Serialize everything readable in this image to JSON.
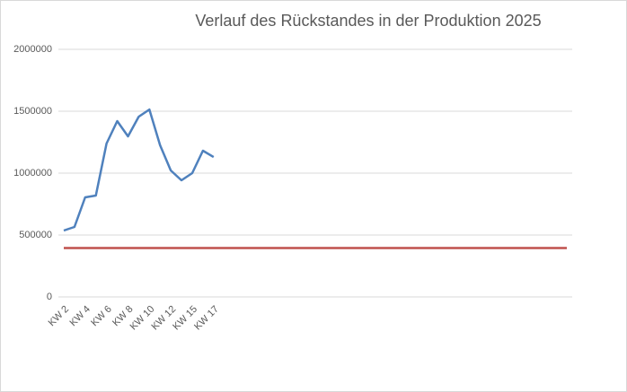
{
  "chart_data": {
    "type": "line",
    "title": "Verlauf des Rückstandes in der Produktion 2025",
    "categories": [
      "KW 2",
      null,
      "KW 4",
      null,
      "KW 6",
      null,
      "KW 8",
      null,
      "KW 10",
      null,
      "KW 12",
      null,
      "KW 15",
      null,
      "KW 17",
      null,
      null,
      null,
      null,
      null,
      null,
      null,
      null,
      null,
      null,
      null,
      null,
      null,
      null,
      null,
      null,
      null,
      null,
      null,
      null,
      null,
      null,
      null,
      null,
      null,
      null,
      null,
      null,
      null,
      null,
      null,
      null,
      null
    ],
    "series": [
      {
        "color": "#4f81bd",
        "values": [
          536000,
          565000,
          804000,
          819000,
          1239000,
          1420000,
          1297000,
          1456000,
          1514000,
          1225000,
          1022000,
          942000,
          1000000,
          1181000,
          1130000,
          null,
          null,
          null,
          null,
          null,
          null,
          null,
          null,
          null,
          null,
          null,
          null,
          null,
          null,
          null,
          null,
          null,
          null,
          null,
          null,
          null,
          null,
          null,
          null,
          null,
          null,
          null,
          null,
          null,
          null,
          null,
          null,
          null
        ]
      },
      {
        "color": "#c0504d",
        "values": [
          395000,
          395000,
          395000,
          395000,
          395000,
          395000,
          395000,
          395000,
          395000,
          395000,
          395000,
          395000,
          395000,
          395000,
          395000,
          395000,
          395000,
          395000,
          395000,
          395000,
          395000,
          395000,
          395000,
          395000,
          395000,
          395000,
          395000,
          395000,
          395000,
          395000,
          395000,
          395000,
          395000,
          395000,
          395000,
          395000,
          395000,
          395000,
          395000,
          395000,
          395000,
          395000,
          395000,
          395000,
          395000,
          395000,
          395000,
          395000
        ]
      }
    ],
    "ylim": [
      0,
      2000000
    ],
    "yticks": [
      0,
      500000,
      1000000,
      1500000,
      2000000
    ],
    "grid": true
  }
}
